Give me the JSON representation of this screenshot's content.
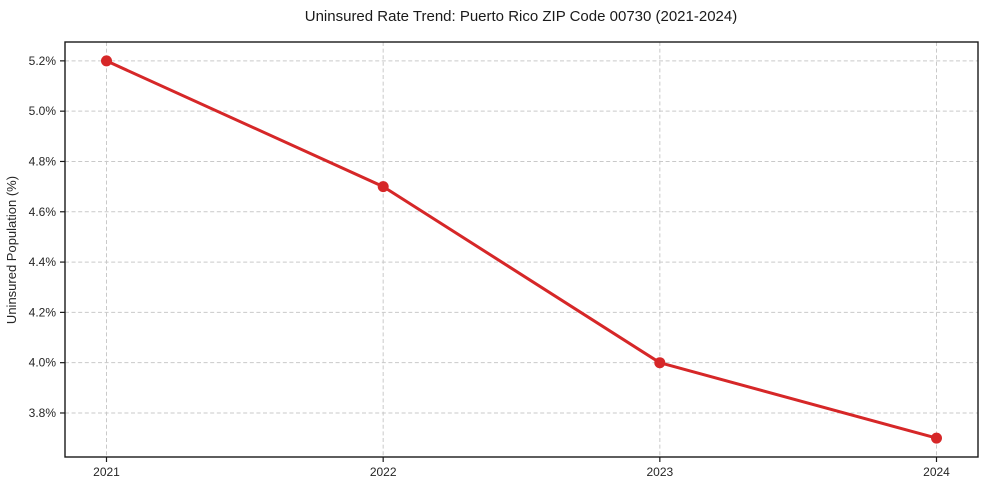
{
  "chart_data": {
    "type": "line",
    "title": "Uninsured Rate Trend: Puerto Rico ZIP Code 00730 (2021-2024)",
    "xlabel": "",
    "ylabel": "Uninsured Population (%)",
    "x": [
      2021,
      2022,
      2023,
      2024
    ],
    "x_tick_labels": [
      "2021",
      "2022",
      "2023",
      "2024"
    ],
    "values": [
      5.2,
      4.7,
      4.0,
      3.7
    ],
    "y_ticks": [
      3.8,
      4.0,
      4.2,
      4.4,
      4.6,
      4.8,
      5.0,
      5.2
    ],
    "y_tick_labels": [
      "3.8%",
      "4.0%",
      "4.2%",
      "4.4%",
      "4.6%",
      "4.8%",
      "5.0%",
      "5.2%"
    ],
    "xlim": [
      2020.85,
      2024.15
    ],
    "ylim": [
      3.625,
      5.275
    ],
    "grid": true,
    "grid_style": "dashed",
    "legend": "none",
    "colors": {
      "line": "#d62728",
      "marker": "#d62728",
      "grid": "#c9c9c9",
      "axis": "#1a1a1a",
      "background": "#ffffff"
    }
  }
}
